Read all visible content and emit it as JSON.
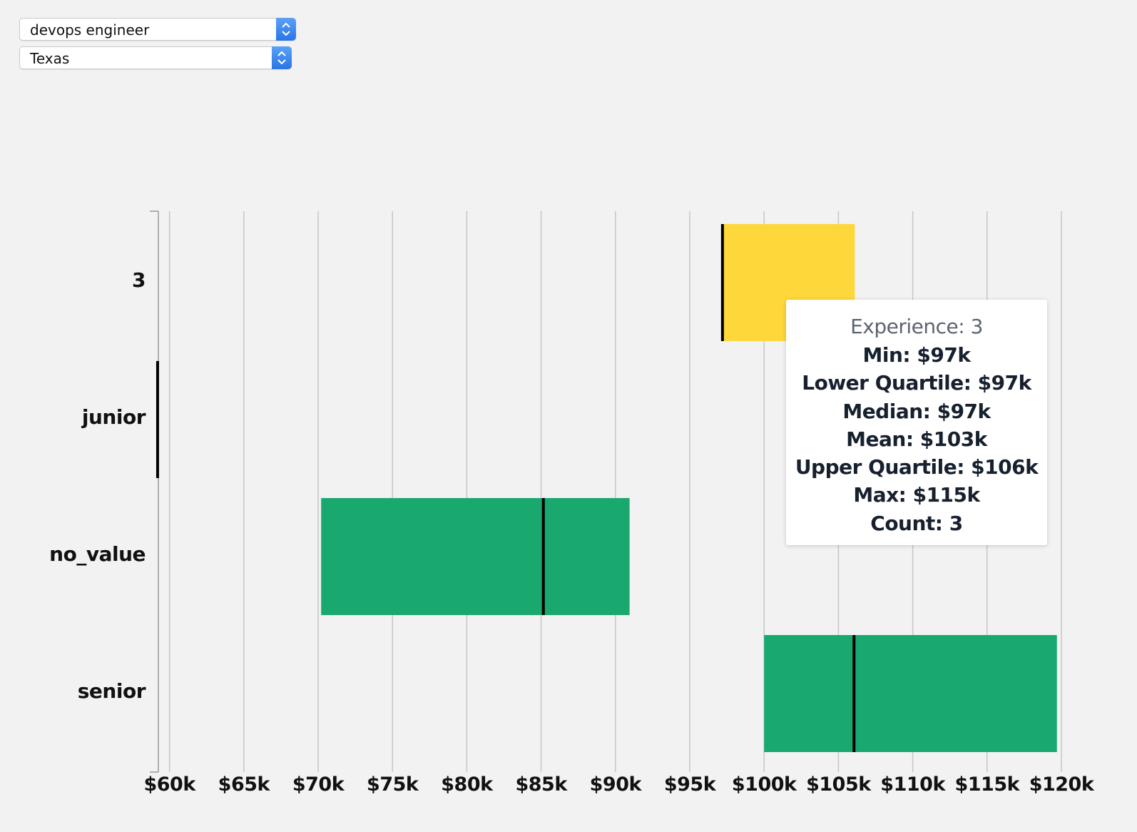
{
  "filters": {
    "role": "devops engineer",
    "state": "Texas"
  },
  "colors": {
    "highlight": "#fed73a",
    "box": "#19a86e",
    "median": "#000000",
    "grid": "#c6c6c6"
  },
  "chart_data": {
    "type": "boxplot",
    "orientation": "horizontal",
    "xlim": [
      59250,
      120000
    ],
    "x_ticks": [
      60000,
      65000,
      70000,
      75000,
      80000,
      85000,
      90000,
      95000,
      100000,
      105000,
      110000,
      115000,
      120000
    ],
    "x_tick_labels": [
      "$60k",
      "$65k",
      "$70k",
      "$75k",
      "$80k",
      "$85k",
      "$90k",
      "$95k",
      "$100k",
      "$105k",
      "$110k",
      "$115k",
      "$120k"
    ],
    "categories": [
      "3",
      "junior",
      "no_value",
      "senior"
    ],
    "boxes": [
      {
        "category": "3",
        "q1": 97200,
        "median": 97200,
        "q3": 106100,
        "highlighted": true
      },
      {
        "category": "junior",
        "q1": 59200,
        "median": 59200,
        "q3": 59200,
        "highlighted": false
      },
      {
        "category": "no_value",
        "q1": 70200,
        "median": 85150,
        "q3": 90950,
        "highlighted": false
      },
      {
        "category": "senior",
        "q1": 100000,
        "median": 106050,
        "q3": 119700,
        "highlighted": false
      }
    ],
    "grid": true,
    "legend": "none"
  },
  "tooltip": {
    "title": "Experience: 3",
    "rows": [
      "Min: $97k",
      "Lower Quartile: $97k",
      "Median: $97k",
      "Mean: $103k",
      "Upper Quartile: $106k",
      "Max: $115k",
      "Count: 3"
    ]
  }
}
